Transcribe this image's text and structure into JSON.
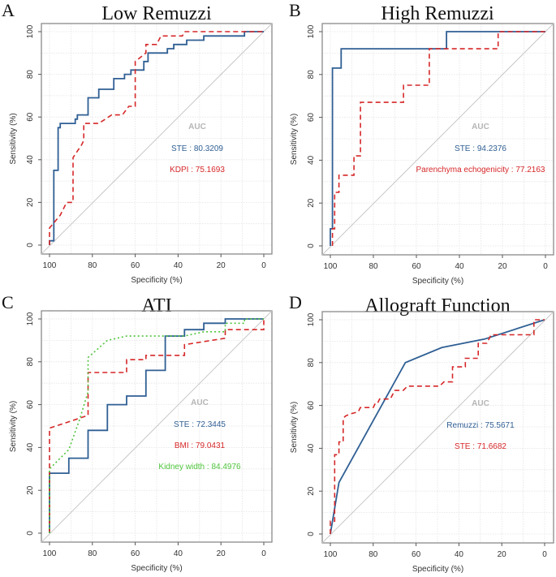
{
  "chart_data": [
    {
      "panel": "A",
      "type": "line",
      "title": "Low Remuzzi",
      "xlabel": "Specificity (%)",
      "ylabel": "Sensitivity (%)",
      "xlim": [
        100,
        0
      ],
      "ylim": [
        0,
        100
      ],
      "x_ticks": [
        100,
        80,
        60,
        40,
        20,
        0
      ],
      "y_ticks": [
        0,
        20,
        40,
        60,
        80,
        100
      ],
      "grid": true,
      "auc_header": "AUC",
      "reference_line": true,
      "series": [
        {
          "name": "STE",
          "auc_text": "STE : 80.3209",
          "color": "#2f5f94",
          "style": "solid",
          "points": [
            [
              100,
              0
            ],
            [
              100,
              2
            ],
            [
              98,
              2
            ],
            [
              98,
              35
            ],
            [
              96,
              35
            ],
            [
              96,
              55
            ],
            [
              95,
              55
            ],
            [
              95,
              57
            ],
            [
              88,
              57
            ],
            [
              88,
              59
            ],
            [
              87,
              59
            ],
            [
              87,
              61
            ],
            [
              82,
              61
            ],
            [
              82,
              69
            ],
            [
              77,
              69
            ],
            [
              77,
              73
            ],
            [
              70,
              73
            ],
            [
              70,
              78
            ],
            [
              65,
              78
            ],
            [
              65,
              80
            ],
            [
              62,
              80
            ],
            [
              62,
              82
            ],
            [
              56,
              82
            ],
            [
              56,
              86
            ],
            [
              54,
              86
            ],
            [
              54,
              90
            ],
            [
              45,
              90
            ],
            [
              45,
              92
            ],
            [
              42,
              92
            ],
            [
              42,
              94
            ],
            [
              36,
              94
            ],
            [
              36,
              96
            ],
            [
              28,
              96
            ],
            [
              28,
              98
            ],
            [
              9,
              98
            ],
            [
              9,
              100
            ],
            [
              0,
              100
            ]
          ]
        },
        {
          "name": "KDPI",
          "auc_text": "KDPI : 75.1693",
          "color": "#d62728",
          "style": "dashed",
          "points": [
            [
              100,
              0
            ],
            [
              100,
              8
            ],
            [
              95,
              14
            ],
            [
              92,
              20
            ],
            [
              89,
              20
            ],
            [
              89,
              41
            ],
            [
              85,
              47
            ],
            [
              84,
              49
            ],
            [
              84,
              57
            ],
            [
              77,
              57
            ],
            [
              71,
              61
            ],
            [
              66,
              61
            ],
            [
              63,
              65
            ],
            [
              60,
              65
            ],
            [
              60,
              86
            ],
            [
              55,
              90
            ],
            [
              55,
              94
            ],
            [
              50,
              94
            ],
            [
              48,
              98
            ],
            [
              38,
              98
            ],
            [
              37,
              100
            ],
            [
              0,
              100
            ]
          ]
        }
      ]
    },
    {
      "panel": "B",
      "type": "line",
      "title": "High Remuzzi",
      "xlabel": "Specificity (%)",
      "ylabel": "Sensitivity (%)",
      "xlim": [
        100,
        0
      ],
      "ylim": [
        0,
        100
      ],
      "x_ticks": [
        100,
        80,
        60,
        40,
        20,
        0
      ],
      "y_ticks": [
        0,
        20,
        40,
        60,
        80,
        100
      ],
      "grid": true,
      "auc_header": "AUC",
      "reference_line": true,
      "series": [
        {
          "name": "STE",
          "auc_text": "STE : 94.2376",
          "color": "#2f5f94",
          "style": "solid",
          "points": [
            [
              100,
              0
            ],
            [
              100,
              8
            ],
            [
              99,
              8
            ],
            [
              99,
              83
            ],
            [
              95,
              83
            ],
            [
              95,
              92
            ],
            [
              46,
              92
            ],
            [
              46,
              100
            ],
            [
              0,
              100
            ]
          ]
        },
        {
          "name": "Parenchyma echogenicity",
          "auc_text": "Parenchyma echogenicity : 77.2163",
          "color": "#d62728",
          "style": "dashed",
          "points": [
            [
              99,
              0
            ],
            [
              99,
              8
            ],
            [
              98,
              8
            ],
            [
              98,
              25
            ],
            [
              96,
              25
            ],
            [
              96,
              33
            ],
            [
              89,
              33
            ],
            [
              89,
              42
            ],
            [
              86,
              42
            ],
            [
              86,
              67
            ],
            [
              66,
              67
            ],
            [
              66,
              75
            ],
            [
              54,
              75
            ],
            [
              54,
              92
            ],
            [
              22,
              92
            ],
            [
              22,
              100
            ],
            [
              0,
              100
            ]
          ]
        }
      ]
    },
    {
      "panel": "C",
      "type": "line",
      "title": "ATI",
      "xlabel": "Specificity (%)",
      "ylabel": "Sensitivity (%)",
      "xlim": [
        100,
        0
      ],
      "ylim": [
        0,
        100
      ],
      "x_ticks": [
        100,
        80,
        60,
        40,
        20,
        0
      ],
      "y_ticks": [
        0,
        20,
        40,
        60,
        80,
        100
      ],
      "grid": true,
      "auc_header": "AUC",
      "reference_line": true,
      "series": [
        {
          "name": "STE",
          "auc_text": "STE : 72.3445",
          "color": "#2f5f94",
          "style": "solid",
          "points": [
            [
              100,
              0
            ],
            [
              100,
              28
            ],
            [
              91,
              28
            ],
            [
              91,
              35
            ],
            [
              82,
              35
            ],
            [
              82,
              48
            ],
            [
              73,
              48
            ],
            [
              73,
              60
            ],
            [
              64,
              60
            ],
            [
              64,
              64
            ],
            [
              55,
              64
            ],
            [
              55,
              76
            ],
            [
              46,
              76
            ],
            [
              46,
              92
            ],
            [
              37,
              92
            ],
            [
              37,
              95
            ],
            [
              28,
              95
            ],
            [
              28,
              98
            ],
            [
              18,
              98
            ],
            [
              18,
              100
            ],
            [
              0,
              100
            ]
          ]
        },
        {
          "name": "BMI",
          "auc_text": "BMI : 79.0431",
          "color": "#d62728",
          "style": "dashed",
          "points": [
            [
              100,
              0
            ],
            [
              100,
              49
            ],
            [
              91,
              52
            ],
            [
              82,
              55
            ],
            [
              82,
              75
            ],
            [
              64,
              75
            ],
            [
              64,
              81
            ],
            [
              55,
              81
            ],
            [
              55,
              83
            ],
            [
              37,
              83
            ],
            [
              37,
              88
            ],
            [
              18,
              91
            ],
            [
              18,
              95
            ],
            [
              0,
              95
            ],
            [
              0,
              100
            ]
          ]
        },
        {
          "name": "Kidney width",
          "auc_text": "Kidney width : 84.4976",
          "color": "#4fc43c",
          "style": "dotted",
          "points": [
            [
              100,
              0
            ],
            [
              100,
              30
            ],
            [
              91,
              39
            ],
            [
              86,
              53
            ],
            [
              82,
              66
            ],
            [
              82,
              82
            ],
            [
              73,
              90
            ],
            [
              64,
              92
            ],
            [
              37,
              92
            ],
            [
              28,
              94
            ],
            [
              18,
              94
            ],
            [
              18,
              98
            ],
            [
              9,
              98
            ],
            [
              9,
              100
            ],
            [
              0,
              100
            ]
          ]
        }
      ]
    },
    {
      "panel": "D",
      "type": "line",
      "title": "Allograft Function",
      "xlabel": "Specificity (%)",
      "ylabel": "Sensitivity (%)",
      "xlim": [
        100,
        0
      ],
      "ylim": [
        0,
        100
      ],
      "x_ticks": [
        100,
        80,
        60,
        40,
        20,
        0
      ],
      "y_ticks": [
        0,
        20,
        40,
        60,
        80,
        100
      ],
      "grid": true,
      "auc_header": "AUC",
      "reference_line": true,
      "series": [
        {
          "name": "Remuzzi",
          "auc_text": "Remuzzi : 75.5671",
          "color": "#2f5f94",
          "style": "solid",
          "points": [
            [
              100,
              0
            ],
            [
              96,
              24
            ],
            [
              65,
              80
            ],
            [
              48,
              87
            ],
            [
              28,
              91
            ],
            [
              0,
              100
            ]
          ]
        },
        {
          "name": "STE",
          "auc_text": "STE : 71.6682",
          "color": "#d62728",
          "style": "dashed",
          "points": [
            [
              100,
              0
            ],
            [
              100,
              6
            ],
            [
              98,
              6
            ],
            [
              98,
              37
            ],
            [
              96,
              37
            ],
            [
              96,
              43
            ],
            [
              94,
              43
            ],
            [
              94,
              54
            ],
            [
              93,
              55
            ],
            [
              91,
              56
            ],
            [
              87,
              57
            ],
            [
              86,
              59
            ],
            [
              80,
              59
            ],
            [
              79,
              61
            ],
            [
              78,
              61
            ],
            [
              77,
              63
            ],
            [
              72,
              63
            ],
            [
              71,
              65
            ],
            [
              70,
              67
            ],
            [
              66,
              67
            ],
            [
              64,
              69
            ],
            [
              49,
              69
            ],
            [
              47,
              71
            ],
            [
              43,
              71
            ],
            [
              43,
              78
            ],
            [
              37,
              78
            ],
            [
              37,
              82
            ],
            [
              31,
              82
            ],
            [
              31,
              89
            ],
            [
              27,
              89
            ],
            [
              26,
              91
            ],
            [
              25,
              93
            ],
            [
              5,
              93
            ],
            [
              5,
              100
            ],
            [
              0,
              100
            ]
          ]
        }
      ]
    }
  ]
}
